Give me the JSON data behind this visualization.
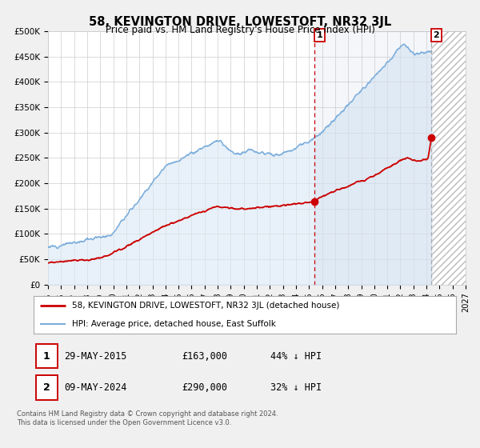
{
  "title": "58, KEVINGTON DRIVE, LOWESTOFT, NR32 3JL",
  "subtitle": "Price paid vs. HM Land Registry's House Price Index (HPI)",
  "ylim": [
    0,
    500000
  ],
  "yticks": [
    0,
    50000,
    100000,
    150000,
    200000,
    250000,
    300000,
    350000,
    400000,
    450000,
    500000
  ],
  "ytick_labels": [
    "£0",
    "£50K",
    "£100K",
    "£150K",
    "£200K",
    "£250K",
    "£300K",
    "£350K",
    "£400K",
    "£450K",
    "£500K"
  ],
  "xlim_start": 1995.0,
  "xlim_end": 2027.0,
  "xticks": [
    1995,
    1996,
    1997,
    1998,
    1999,
    2000,
    2001,
    2002,
    2003,
    2004,
    2005,
    2006,
    2007,
    2008,
    2009,
    2010,
    2011,
    2012,
    2013,
    2014,
    2015,
    2016,
    2017,
    2018,
    2019,
    2020,
    2021,
    2022,
    2023,
    2024,
    2025,
    2026,
    2027
  ],
  "red_line_color": "#cc0000",
  "blue_line_color": "#7aaddb",
  "blue_fill_color": "#dae8f5",
  "vline1_x": 2015.41,
  "vline2_x": 2024.36,
  "point1_x": 2015.41,
  "point1_y": 163000,
  "point2_x": 2024.36,
  "point2_y": 290000,
  "hatch_start": 2024.36,
  "hatch_end": 2027.0,
  "legend_label_red": "58, KEVINGTON DRIVE, LOWESTOFT, NR32 3JL (detached house)",
  "legend_label_blue": "HPI: Average price, detached house, East Suffolk",
  "ann1_label": "1",
  "ann1_date": "29-MAY-2015",
  "ann1_price": "£163,000",
  "ann1_hpi": "44% ↓ HPI",
  "ann2_label": "2",
  "ann2_date": "09-MAY-2024",
  "ann2_price": "£290,000",
  "ann2_hpi": "32% ↓ HPI",
  "footer_line1": "Contains HM Land Registry data © Crown copyright and database right 2024.",
  "footer_line2": "This data is licensed under the Open Government Licence v3.0.",
  "bg_color": "#f0f0f0",
  "plot_bg": "#ffffff",
  "grid_color": "#cccccc"
}
